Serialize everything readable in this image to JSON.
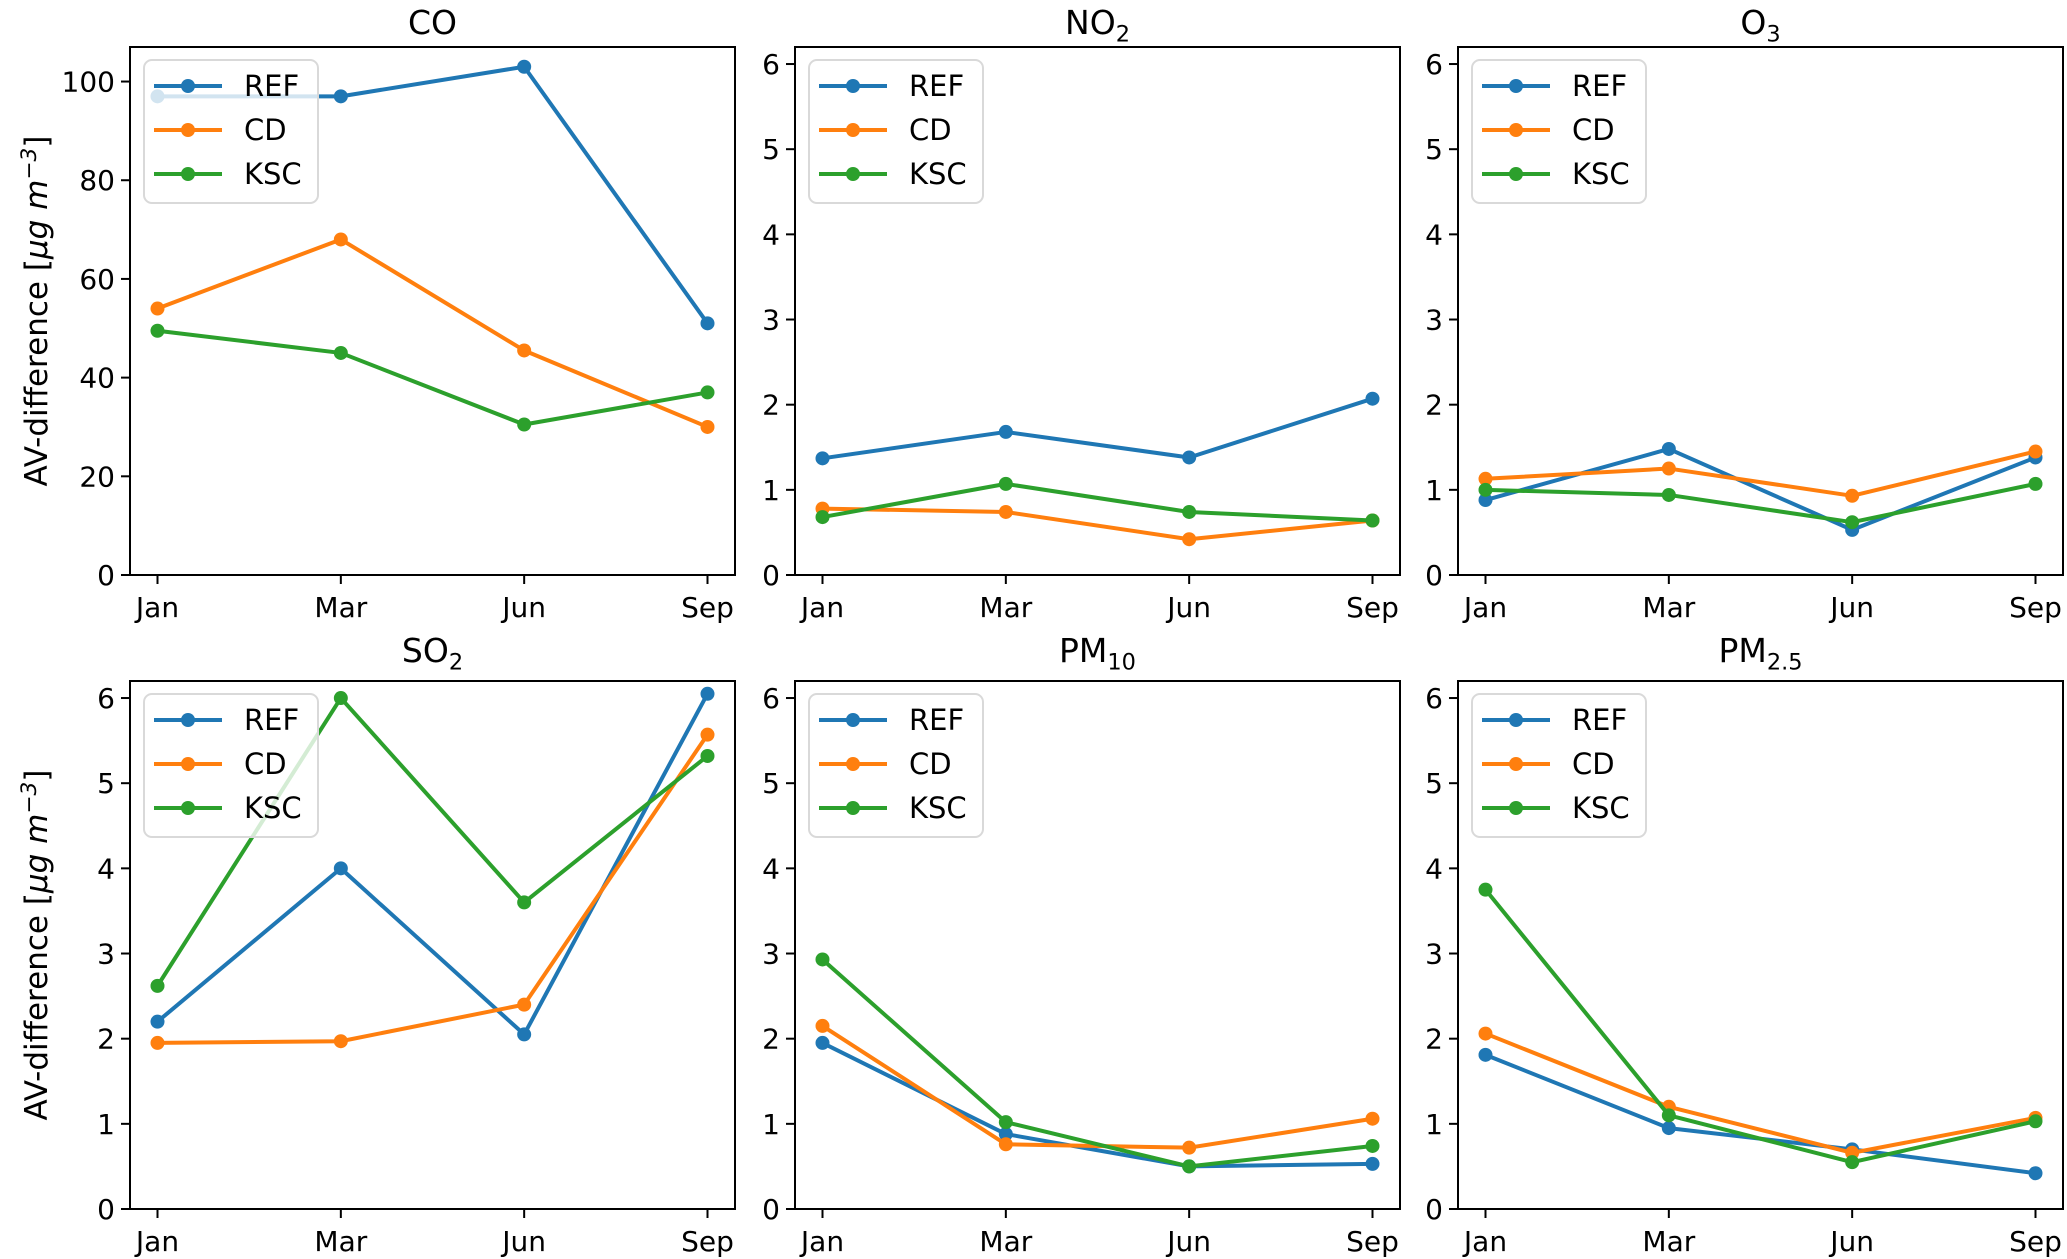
{
  "figure": {
    "background": "#ffffff",
    "text_color": "#000000"
  },
  "ylabel_parts": {
    "prefix": "AV-difference [",
    "unit": "μg m",
    "exponent": "−3",
    "suffix": "]"
  },
  "legend": {
    "position": "upper left",
    "entries": [
      "REF",
      "CD",
      "KSC"
    ]
  },
  "series_colors": {
    "REF": "#1f77b4",
    "CD": "#ff7f0e",
    "KSC": "#2ca02c"
  },
  "chart_data": [
    {
      "type": "line",
      "title_main": "CO",
      "title_sub": "",
      "ylabel": "AV-difference [μg m⁻³]",
      "categories": [
        "Jan",
        "Mar",
        "Jun",
        "Sep"
      ],
      "ylim": [
        0,
        107
      ],
      "yticks": [
        0,
        20,
        40,
        60,
        80,
        100
      ],
      "grid": false,
      "legend_position": "upper left",
      "series": [
        {
          "name": "REF",
          "color": "#1f77b4",
          "values": [
            97,
            97,
            103,
            51
          ]
        },
        {
          "name": "CD",
          "color": "#ff7f0e",
          "values": [
            54,
            68,
            45.5,
            30
          ]
        },
        {
          "name": "KSC",
          "color": "#2ca02c",
          "values": [
            49.5,
            45,
            30.5,
            37
          ]
        }
      ]
    },
    {
      "type": "line",
      "title_main": "NO",
      "title_sub": "2",
      "ylabel": "",
      "categories": [
        "Jan",
        "Mar",
        "Jun",
        "Sep"
      ],
      "ylim": [
        0,
        6.2
      ],
      "yticks": [
        0,
        1,
        2,
        3,
        4,
        5,
        6
      ],
      "grid": false,
      "legend_position": "upper left",
      "series": [
        {
          "name": "REF",
          "color": "#1f77b4",
          "values": [
            1.37,
            1.68,
            1.38,
            2.07
          ]
        },
        {
          "name": "CD",
          "color": "#ff7f0e",
          "values": [
            0.78,
            0.74,
            0.42,
            0.64
          ]
        },
        {
          "name": "KSC",
          "color": "#2ca02c",
          "values": [
            0.68,
            1.07,
            0.74,
            0.64
          ]
        }
      ]
    },
    {
      "type": "line",
      "title_main": "O",
      "title_sub": "3",
      "ylabel": "",
      "categories": [
        "Jan",
        "Mar",
        "Jun",
        "Sep"
      ],
      "ylim": [
        0,
        6.2
      ],
      "yticks": [
        0,
        1,
        2,
        3,
        4,
        5,
        6
      ],
      "grid": false,
      "legend_position": "upper left",
      "series": [
        {
          "name": "REF",
          "color": "#1f77b4",
          "values": [
            0.88,
            1.48,
            0.53,
            1.38
          ]
        },
        {
          "name": "CD",
          "color": "#ff7f0e",
          "values": [
            1.13,
            1.25,
            0.93,
            1.45
          ]
        },
        {
          "name": "KSC",
          "color": "#2ca02c",
          "values": [
            1.0,
            0.94,
            0.62,
            1.07
          ]
        }
      ]
    },
    {
      "type": "line",
      "title_main": "SO",
      "title_sub": "2",
      "ylabel": "AV-difference [μg m⁻³]",
      "categories": [
        "Jan",
        "Mar",
        "Jun",
        "Sep"
      ],
      "ylim": [
        0,
        6.2
      ],
      "yticks": [
        0,
        1,
        2,
        3,
        4,
        5,
        6
      ],
      "grid": false,
      "legend_position": "upper left",
      "series": [
        {
          "name": "REF",
          "color": "#1f77b4",
          "values": [
            2.2,
            4.0,
            2.05,
            6.05
          ]
        },
        {
          "name": "CD",
          "color": "#ff7f0e",
          "values": [
            1.95,
            1.97,
            2.4,
            5.57
          ]
        },
        {
          "name": "KSC",
          "color": "#2ca02c",
          "values": [
            2.62,
            6.0,
            3.6,
            5.32
          ]
        }
      ]
    },
    {
      "type": "line",
      "title_main": "PM",
      "title_sub": "10",
      "ylabel": "",
      "categories": [
        "Jan",
        "Mar",
        "Jun",
        "Sep"
      ],
      "ylim": [
        0,
        6.2
      ],
      "yticks": [
        0,
        1,
        2,
        3,
        4,
        5,
        6
      ],
      "grid": false,
      "legend_position": "upper left",
      "series": [
        {
          "name": "REF",
          "color": "#1f77b4",
          "values": [
            1.95,
            0.88,
            0.5,
            0.53
          ]
        },
        {
          "name": "CD",
          "color": "#ff7f0e",
          "values": [
            2.15,
            0.76,
            0.72,
            1.06
          ]
        },
        {
          "name": "KSC",
          "color": "#2ca02c",
          "values": [
            2.93,
            1.02,
            0.5,
            0.74
          ]
        }
      ]
    },
    {
      "type": "line",
      "title_main": "PM",
      "title_sub": "2.5",
      "ylabel": "",
      "categories": [
        "Jan",
        "Mar",
        "Jun",
        "Sep"
      ],
      "ylim": [
        0,
        6.2
      ],
      "yticks": [
        0,
        1,
        2,
        3,
        4,
        5,
        6
      ],
      "grid": false,
      "legend_position": "upper left",
      "series": [
        {
          "name": "REF",
          "color": "#1f77b4",
          "values": [
            1.81,
            0.95,
            0.7,
            0.42
          ]
        },
        {
          "name": "CD",
          "color": "#ff7f0e",
          "values": [
            2.06,
            1.2,
            0.66,
            1.07
          ]
        },
        {
          "name": "KSC",
          "color": "#2ca02c",
          "values": [
            3.75,
            1.1,
            0.55,
            1.03
          ]
        }
      ]
    }
  ]
}
